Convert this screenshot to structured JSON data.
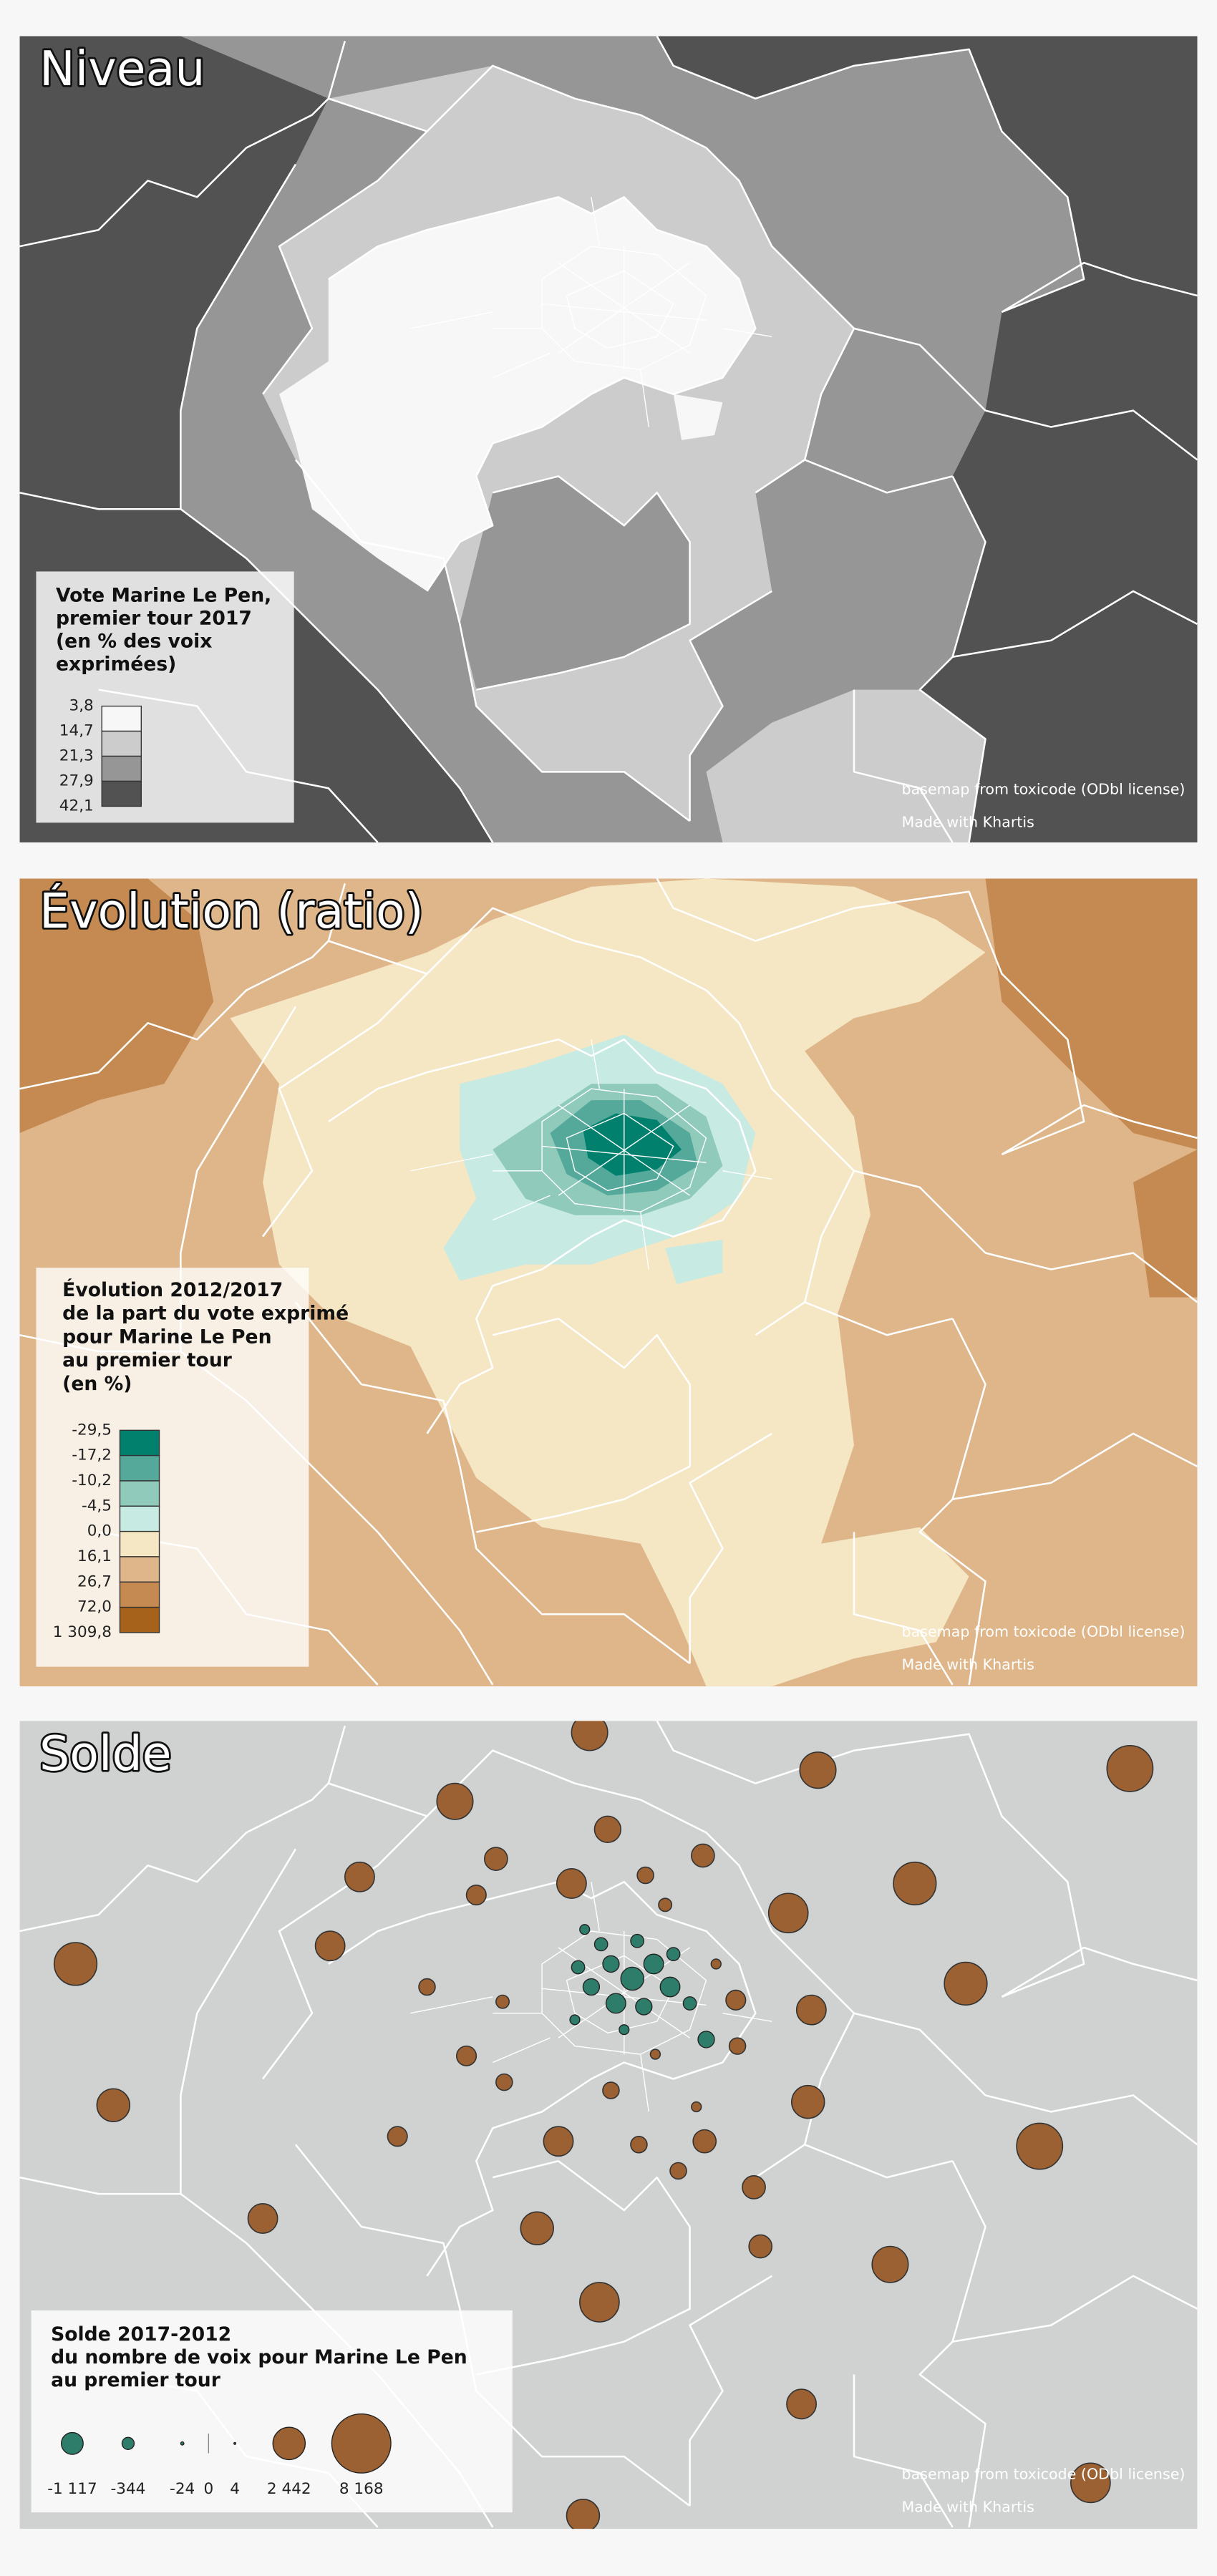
{
  "panels": [
    {
      "title": "Niveau",
      "legend": {
        "title_lines": [
          "Vote Marine Le Pen,",
          "premier tour 2017",
          "(en % des voix",
          "exprimées)"
        ],
        "breaks": [
          "3,8",
          "14,7",
          "21,3",
          "27,9",
          "42,1"
        ],
        "colors": [
          "#f7f7f7",
          "#cccccc",
          "#969696",
          "#525252"
        ]
      },
      "credits": [
        "basemap from toxicode (ODbl license)",
        "Made with Khartis"
      ]
    },
    {
      "title": "Évolution (ratio)",
      "legend": {
        "title_lines": [
          "Évolution 2012/2017",
          "de la part du vote exprimé",
          "pour Marine Le Pen",
          "au premier tour",
          "(en %)"
        ],
        "breaks": [
          "-29,5",
          "-17,2",
          "-10,2",
          "-4,5",
          "0,0",
          "16,1",
          "26,7",
          "72,0",
          "1 309,8"
        ],
        "colors": [
          "#01806e",
          "#55a99a",
          "#8fcabb",
          "#c7eae3",
          "#f5e6c4",
          "#dfb68a",
          "#c48a52",
          "#a6611a"
        ]
      },
      "credits": [
        "basemap from toxicode (ODbl license)",
        "Made with Khartis"
      ]
    },
    {
      "title": "Solde",
      "legend": {
        "title_lines": [
          "Solde 2017-2012",
          "du nombre de voix pour Marine Le Pen",
          "au premier tour"
        ],
        "items": [
          {
            "value": -1117,
            "label": "-1 117"
          },
          {
            "value": -344,
            "label": "-344"
          },
          {
            "value": -24,
            "label": "-24"
          },
          {
            "value": 0,
            "label": "0"
          },
          {
            "value": 4,
            "label": "4"
          },
          {
            "value": 2442,
            "label": "2 442"
          },
          {
            "value": 8168,
            "label": "8 168"
          }
        ],
        "negative_color": "#2e7d6b",
        "positive_color": "#9b6132"
      },
      "credits": [
        "basemap from toxicode (ODbl license)",
        "Made with Khartis"
      ]
    }
  ]
}
